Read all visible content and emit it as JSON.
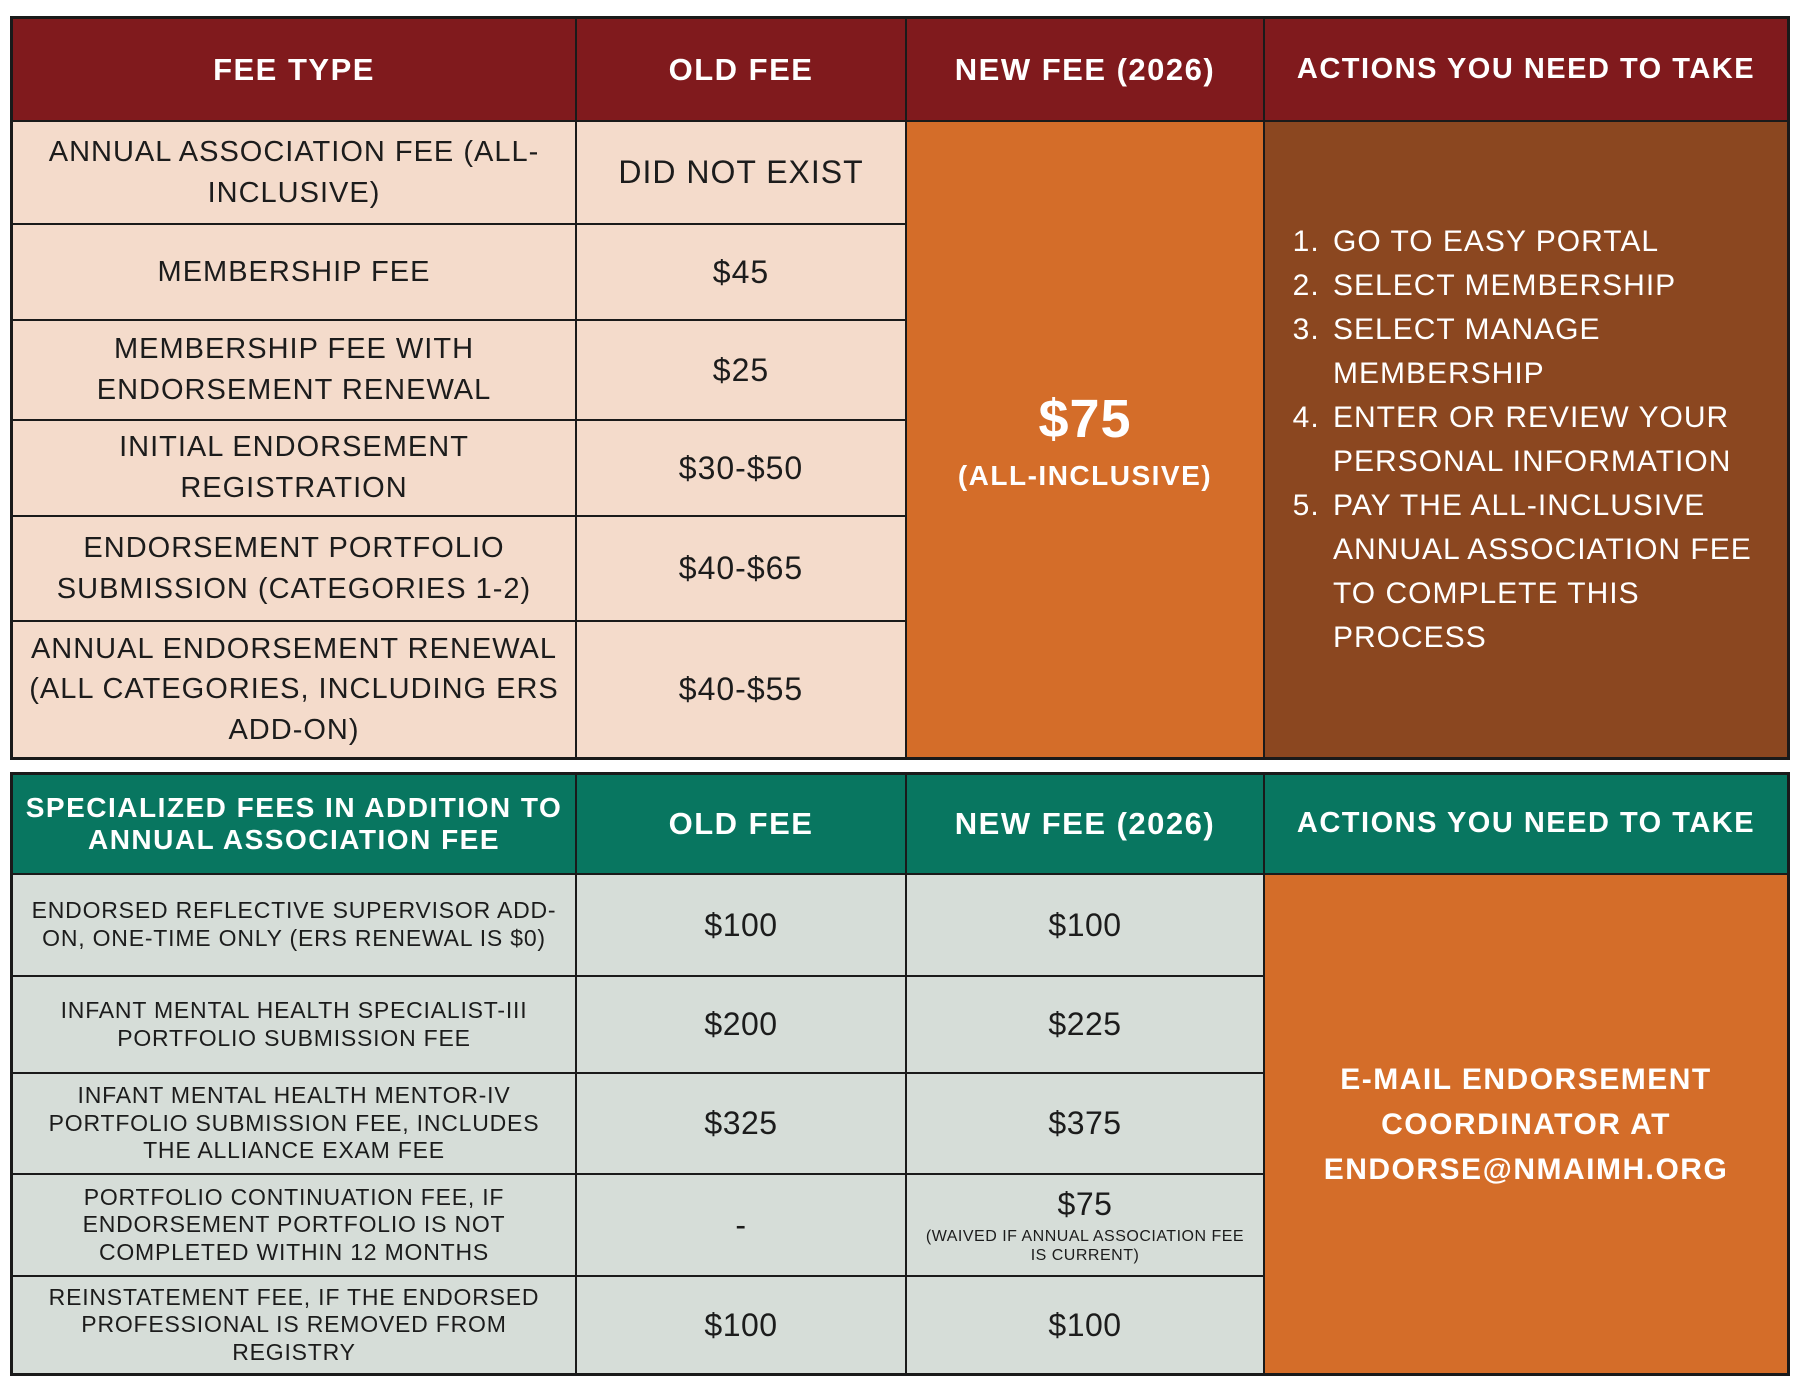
{
  "top_table": {
    "headers": [
      "FEE TYPE",
      "OLD FEE",
      "NEW FEE (2026)",
      "ACTIONS YOU NEED TO TAKE"
    ],
    "rows": [
      {
        "fee_type": "ANNUAL ASSOCIATION FEE (ALL-INCLUSIVE)",
        "old_fee": "DID NOT EXIST"
      },
      {
        "fee_type": "MEMBERSHIP FEE",
        "old_fee": "$45"
      },
      {
        "fee_type": "MEMBERSHIP FEE WITH ENDORSEMENT RENEWAL",
        "old_fee": "$25"
      },
      {
        "fee_type": "INITIAL ENDORSEMENT REGISTRATION",
        "old_fee": "$30-$50"
      },
      {
        "fee_type": "ENDORSEMENT PORTFOLIO SUBMISSION (CATEGORIES 1-2)",
        "old_fee": "$40-$65"
      },
      {
        "fee_type": "ANNUAL ENDORSEMENT RENEWAL (ALL CATEGORIES, INCLUDING ERS ADD-ON)",
        "old_fee": "$40-$55"
      }
    ],
    "new_fee": {
      "amount": "$75",
      "note": "(ALL-INCLUSIVE)"
    },
    "actions": [
      "GO TO EASY PORTAL",
      "SELECT MEMBERSHIP",
      "SELECT MANAGE MEMBERSHIP",
      "ENTER OR REVIEW YOUR PERSONAL INFORMATION",
      "PAY THE ALL-INCLUSIVE ANNUAL ASSOCIATION FEE TO COMPLETE THIS PROCESS"
    ]
  },
  "bottom_table": {
    "headers": [
      "SPECIALIZED FEES IN ADDITION TO ANNUAL ASSOCIATION FEE",
      "OLD FEE",
      "NEW FEE (2026)",
      "ACTIONS YOU NEED TO TAKE"
    ],
    "rows": [
      {
        "fee_type": "ENDORSED REFLECTIVE SUPERVISOR ADD-ON, ONE-TIME ONLY (ERS RENEWAL IS $0)",
        "old_fee": "$100",
        "new_fee": "$100",
        "new_note": ""
      },
      {
        "fee_type": "INFANT MENTAL HEALTH SPECIALIST-III PORTFOLIO SUBMISSION FEE",
        "old_fee": "$200",
        "new_fee": "$225",
        "new_note": ""
      },
      {
        "fee_type": "INFANT MENTAL HEALTH MENTOR-IV PORTFOLIO SUBMISSION FEE, INCLUDES THE ALLIANCE EXAM FEE",
        "old_fee": "$325",
        "new_fee": "$375",
        "new_note": ""
      },
      {
        "fee_type": "PORTFOLIO CONTINUATION FEE, IF ENDORSEMENT PORTFOLIO IS NOT COMPLETED WITHIN 12 MONTHS",
        "old_fee": "-",
        "new_fee": "$75",
        "new_note": "(WAIVED IF ANNUAL ASSOCIATION FEE IS CURRENT)"
      },
      {
        "fee_type": "REINSTATEMENT FEE, IF THE ENDORSED PROFESSIONAL IS REMOVED FROM REGISTRY",
        "old_fee": "$100",
        "new_fee": "$100",
        "new_note": ""
      }
    ],
    "action": "E-MAIL ENDORSEMENT COORDINATOR AT ENDORSE@NMAIMH.ORG"
  }
}
